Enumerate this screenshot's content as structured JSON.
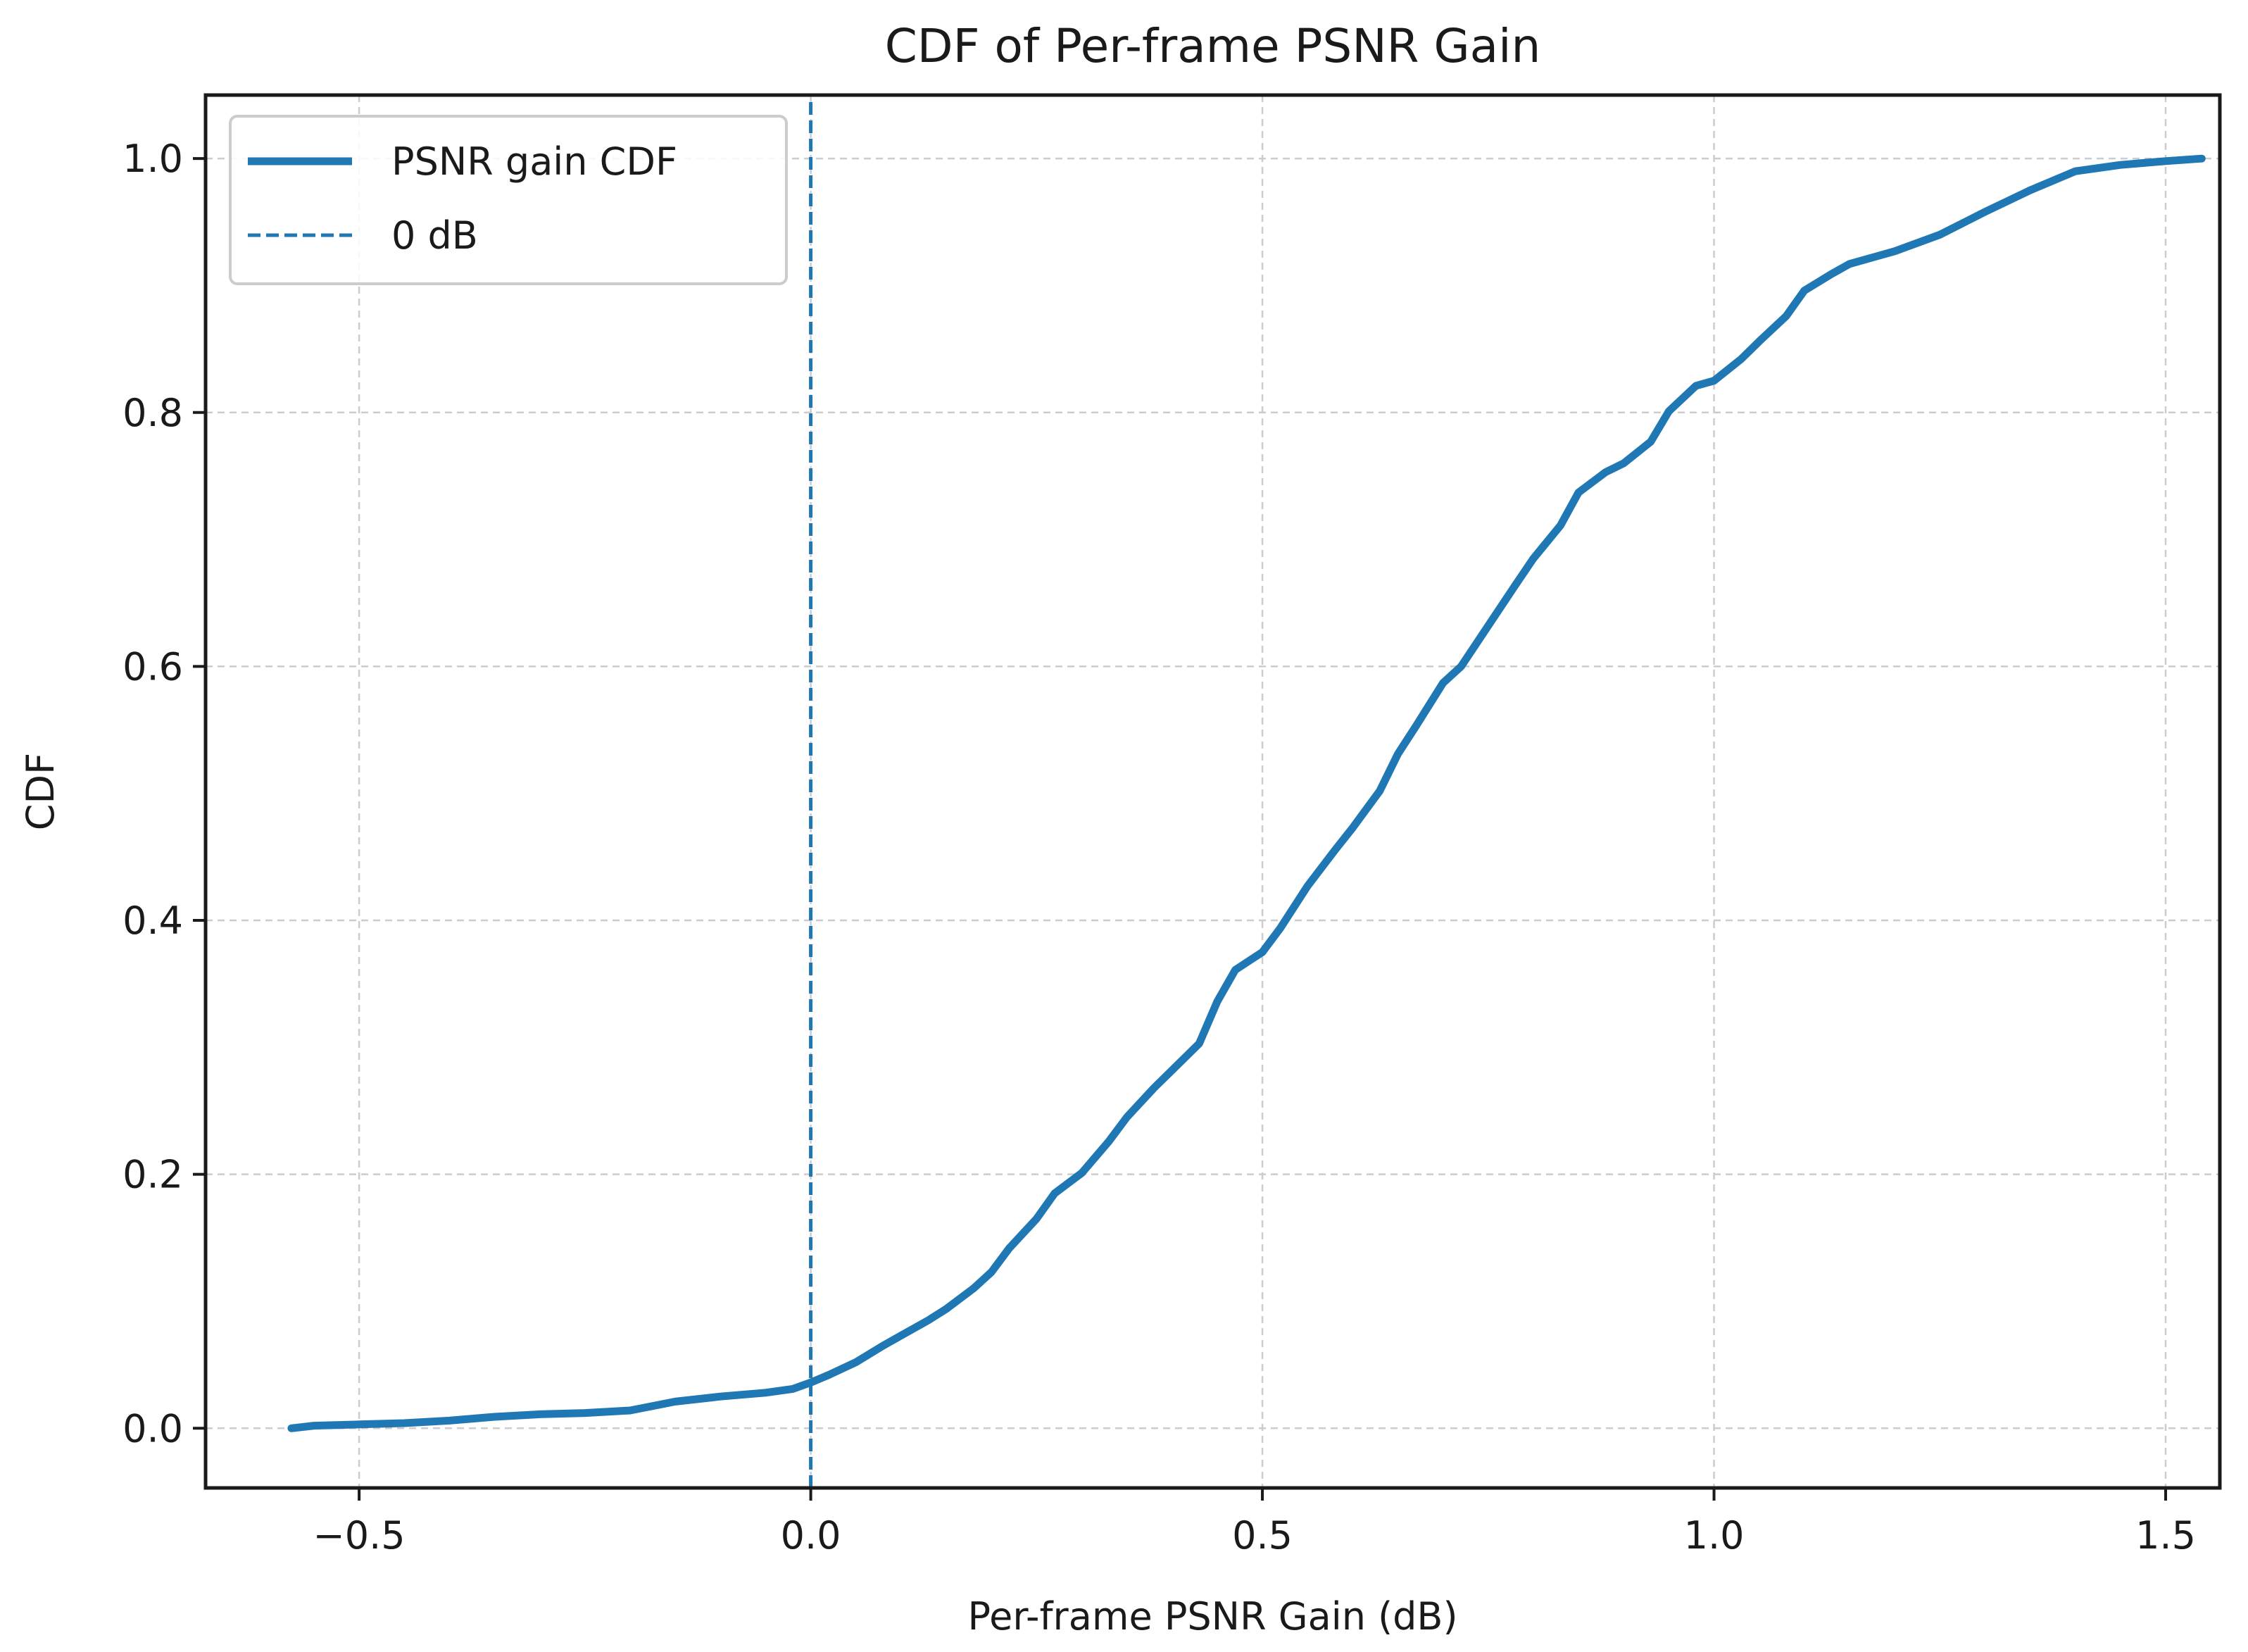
{
  "chart_data": {
    "type": "line",
    "title": "CDF of Per-frame PSNR Gain",
    "xlabel": "Per-frame PSNR Gain (dB)",
    "ylabel": "CDF",
    "xlim": [
      -0.67,
      1.56
    ],
    "ylim": [
      -0.047,
      1.05
    ],
    "xticks": [
      -0.5,
      0.0,
      0.5,
      1.0,
      1.5
    ],
    "xtick_labels": [
      "−0.5",
      "0.0",
      "0.5",
      "1.0",
      "1.5"
    ],
    "yticks": [
      0.0,
      0.2,
      0.4,
      0.6,
      0.8,
      1.0
    ],
    "ytick_labels": [
      "0.0",
      "0.2",
      "0.4",
      "0.6",
      "0.8",
      "1.0"
    ],
    "grid": true,
    "legend_position": "top-left",
    "colors": {
      "series": "#1f77b4",
      "grid": "#cccccc",
      "axes": "#1a1a1a"
    },
    "series": [
      {
        "name": "PSNR gain CDF",
        "style": "solid",
        "x": [
          -0.575,
          -0.55,
          -0.5,
          -0.45,
          -0.4,
          -0.35,
          -0.3,
          -0.25,
          -0.2,
          -0.15,
          -0.1,
          -0.05,
          -0.02,
          0.0,
          0.02,
          0.05,
          0.08,
          0.1,
          0.13,
          0.15,
          0.18,
          0.2,
          0.22,
          0.25,
          0.27,
          0.3,
          0.33,
          0.35,
          0.38,
          0.4,
          0.43,
          0.45,
          0.47,
          0.5,
          0.52,
          0.55,
          0.58,
          0.6,
          0.63,
          0.65,
          0.67,
          0.7,
          0.72,
          0.75,
          0.78,
          0.8,
          0.83,
          0.85,
          0.88,
          0.9,
          0.93,
          0.95,
          0.98,
          1.0,
          1.03,
          1.05,
          1.08,
          1.1,
          1.13,
          1.15,
          1.2,
          1.25,
          1.3,
          1.35,
          1.4,
          1.45,
          1.5,
          1.54
        ],
        "y": [
          0.0,
          0.002,
          0.003,
          0.004,
          0.006,
          0.009,
          0.011,
          0.012,
          0.014,
          0.021,
          0.025,
          0.028,
          0.031,
          0.036,
          0.042,
          0.052,
          0.065,
          0.073,
          0.085,
          0.094,
          0.11,
          0.123,
          0.142,
          0.165,
          0.185,
          0.201,
          0.226,
          0.245,
          0.268,
          0.282,
          0.303,
          0.336,
          0.361,
          0.375,
          0.394,
          0.427,
          0.455,
          0.473,
          0.502,
          0.531,
          0.553,
          0.587,
          0.6,
          0.632,
          0.664,
          0.685,
          0.711,
          0.737,
          0.753,
          0.76,
          0.777,
          0.801,
          0.821,
          0.825,
          0.842,
          0.856,
          0.876,
          0.896,
          0.909,
          0.917,
          0.927,
          0.94,
          0.958,
          0.975,
          0.99,
          0.995,
          0.998,
          1.0
        ]
      },
      {
        "name": "0 dB",
        "style": "dashed",
        "x": [
          0.0,
          0.0
        ],
        "y": [
          -0.047,
          1.05
        ]
      }
    ]
  }
}
